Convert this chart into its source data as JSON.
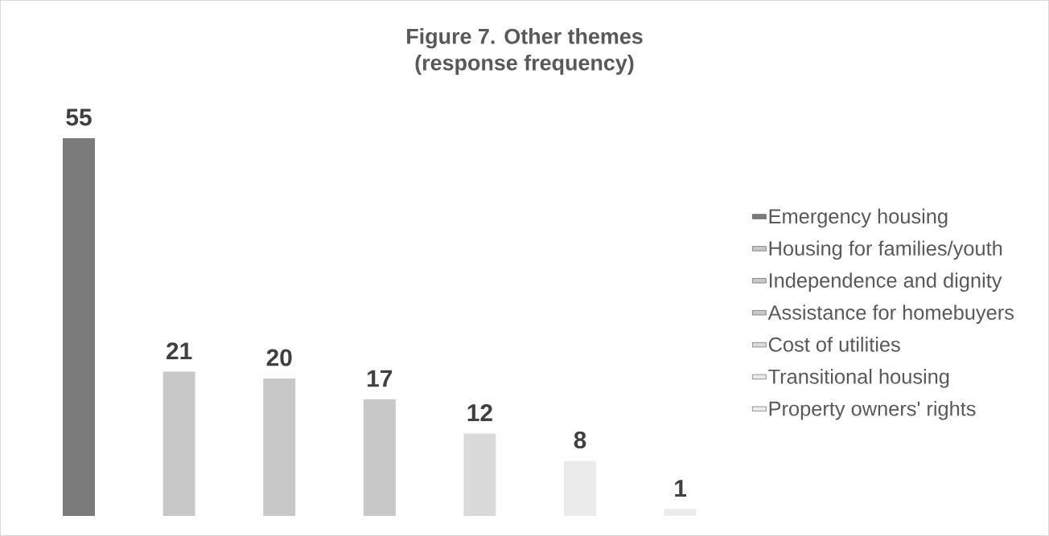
{
  "chart_data": {
    "type": "bar",
    "title": "Figure 7. Other themes\n(response frequency)",
    "categories": [
      null,
      null,
      null,
      null,
      null,
      null,
      null
    ],
    "stacked": true,
    "series": [
      {
        "name": "Emergency housing",
        "color": "#7b7b7b",
        "values": [
          55,
          null,
          null,
          null,
          null,
          null,
          null
        ]
      },
      {
        "name": "Housing for families/youth",
        "color": "#c8c8c8",
        "values": [
          null,
          21,
          null,
          null,
          null,
          null,
          null
        ]
      },
      {
        "name": "Independence and dignity",
        "color": "#c8c8c8",
        "values": [
          null,
          null,
          20,
          null,
          null,
          null,
          null
        ]
      },
      {
        "name": "Assistance for homebuyers",
        "color": "#c8c8c8",
        "values": [
          null,
          null,
          null,
          17,
          null,
          null,
          null
        ]
      },
      {
        "name": "Cost of utilities",
        "color": "#dadada",
        "values": [
          null,
          null,
          null,
          null,
          12,
          null,
          null
        ]
      },
      {
        "name": "Transitional housing",
        "color": "#ebebeb",
        "values": [
          null,
          null,
          null,
          null,
          null,
          8,
          null
        ]
      },
      {
        "name": "Property owners' rights",
        "color": "#ebebeb",
        "values": [
          null,
          null,
          null,
          null,
          null,
          null,
          1
        ]
      }
    ],
    "data_labels": true,
    "legend": "right"
  }
}
